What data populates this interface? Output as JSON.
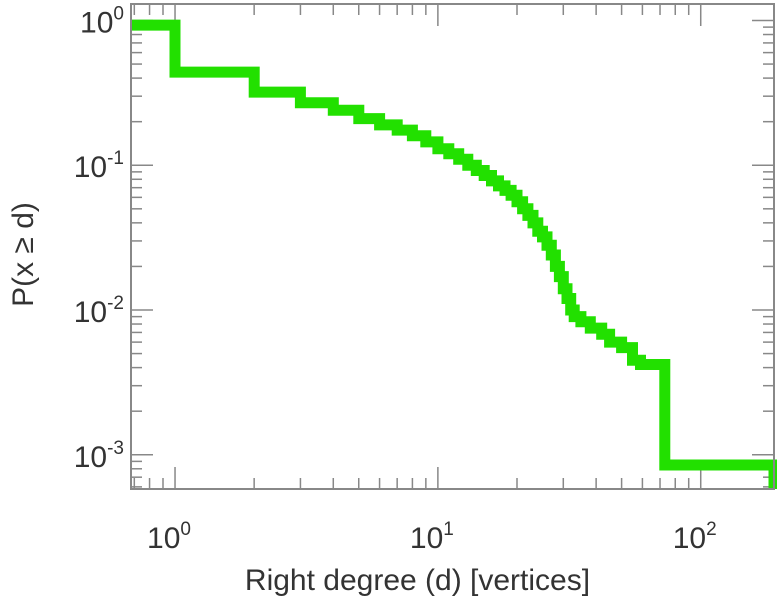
{
  "chart_data": {
    "type": "line",
    "style": "step",
    "xlabel": "Right degree (d) [vertices]",
    "ylabel": "P(x ≥ d)",
    "xscale": "log",
    "yscale": "log",
    "xlim": [
      0.68,
      190
    ],
    "ylim": [
      0.00058,
      1.3
    ],
    "x_ticks": [
      {
        "base": "10",
        "exp": "0",
        "value": 1
      },
      {
        "base": "10",
        "exp": "1",
        "value": 10
      },
      {
        "base": "10",
        "exp": "2",
        "value": 100
      }
    ],
    "y_ticks": [
      {
        "base": "10",
        "exp": "0",
        "value": 1
      },
      {
        "base": "10",
        "exp": "-1",
        "value": 0.1
      },
      {
        "base": "10",
        "exp": "-2",
        "value": 0.01
      },
      {
        "base": "10",
        "exp": "-3",
        "value": 0.001
      }
    ],
    "grid": false,
    "line_color": "#22e000",
    "series": [
      {
        "x": [
          0.68,
          1,
          2,
          3,
          4,
          5,
          6,
          7,
          8,
          9,
          10,
          11,
          12,
          13,
          14,
          15,
          16,
          17,
          18,
          19,
          20,
          21,
          22,
          23,
          24,
          25,
          26,
          27,
          28,
          29,
          30,
          31,
          32,
          33,
          35,
          38,
          42,
          45,
          50,
          55,
          59,
          73,
          120,
          185,
          190
        ],
        "y": [
          0.93,
          0.44,
          0.32,
          0.27,
          0.24,
          0.21,
          0.19,
          0.175,
          0.16,
          0.145,
          0.13,
          0.12,
          0.11,
          0.1,
          0.092,
          0.085,
          0.078,
          0.072,
          0.067,
          0.062,
          0.056,
          0.05,
          0.045,
          0.04,
          0.035,
          0.032,
          0.028,
          0.024,
          0.02,
          0.017,
          0.014,
          0.012,
          0.01,
          0.009,
          0.0083,
          0.0075,
          0.0068,
          0.006,
          0.0055,
          0.0045,
          0.0042,
          0.00085,
          0.00085,
          0.00085,
          0.00058
        ]
      }
    ]
  }
}
